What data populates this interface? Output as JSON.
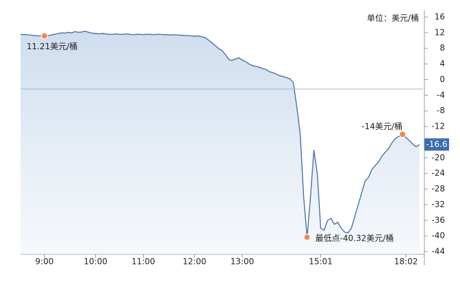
{
  "chart_data": {
    "type": "line",
    "unit_label": "单位：美元/桶",
    "x": [
      0,
      1,
      2,
      3,
      4,
      5,
      6,
      7,
      8,
      9,
      10,
      11,
      12,
      13,
      14,
      15,
      16,
      17,
      18,
      19,
      20,
      21,
      22,
      23,
      24,
      25,
      26,
      27,
      28,
      29,
      30,
      31,
      32,
      33,
      34,
      35,
      36,
      37,
      38,
      39,
      40,
      41,
      42,
      43,
      44,
      45,
      46,
      47,
      48,
      49,
      50,
      51,
      52,
      53,
      54,
      55,
      56,
      57,
      58,
      59,
      60,
      61,
      62,
      63,
      64,
      65,
      66,
      67,
      68,
      69,
      70,
      71,
      72,
      73,
      74,
      75,
      76,
      77,
      78,
      79,
      80,
      81,
      82,
      83,
      84,
      85,
      86,
      87,
      88,
      89,
      90,
      91,
      92,
      93,
      94,
      95,
      96,
      97,
      98,
      99,
      100,
      101,
      102,
      103,
      104,
      105,
      106,
      107,
      108,
      109,
      110,
      111,
      112,
      113,
      114,
      115,
      116,
      117
    ],
    "series": [
      {
        "color": "#4a6fa5",
        "values": [
          11.6,
          11.5,
          11.5,
          11.4,
          11.3,
          11.2,
          11.2,
          11.21,
          11.3,
          11.4,
          11.6,
          11.8,
          12.0,
          11.9,
          12.1,
          12.0,
          12.3,
          12.1,
          12.2,
          12.4,
          12.1,
          11.9,
          11.8,
          11.7,
          11.8,
          11.7,
          11.6,
          11.6,
          11.7,
          11.6,
          11.6,
          11.7,
          11.6,
          11.5,
          11.6,
          11.6,
          11.5,
          11.6,
          11.6,
          11.5,
          11.6,
          11.6,
          11.5,
          11.5,
          11.4,
          11.5,
          11.4,
          11.4,
          11.3,
          11.3,
          11.2,
          11.1,
          11.2,
          11.0,
          10.8,
          10.2,
          9.5,
          8.8,
          8.0,
          7.5,
          6.5,
          5.2,
          4.9,
          5.3,
          5.6,
          5.0,
          4.6,
          4.0,
          3.6,
          3.4,
          3.2,
          2.8,
          2.6,
          2.0,
          1.8,
          1.4,
          1.0,
          0.8,
          0.5,
          0.2,
          -0.8,
          -7,
          -14,
          -30,
          -40.32,
          -30,
          -18,
          -24,
          -38,
          -38.5,
          -36,
          -35.5,
          -37,
          -36.5,
          -38,
          -39,
          -39.2,
          -38,
          -35,
          -32,
          -29,
          -26,
          -25,
          -23,
          -22,
          -21,
          -19.5,
          -18.5,
          -17.5,
          -16,
          -15,
          -14.5,
          -14,
          -14.8,
          -15.6,
          -16.5,
          -17.2,
          -16.6
        ]
      }
    ],
    "xlim": [
      0,
      118
    ],
    "xticks": [
      {
        "value": 7,
        "label": "9:00"
      },
      {
        "value": 22,
        "label": "10:00"
      },
      {
        "value": 36,
        "label": "11:00"
      },
      {
        "value": 51,
        "label": "12:00"
      },
      {
        "value": 65,
        "label": "13:00"
      },
      {
        "value": 88,
        "label": "15:01"
      },
      {
        "value": 113,
        "label": "18:02"
      }
    ],
    "ylim": [
      -44,
      16
    ],
    "yticks": [
      16,
      12,
      8,
      4,
      0,
      -4,
      -8,
      -12,
      -16,
      -20,
      -24,
      -28,
      -32,
      -36,
      -40,
      -44
    ],
    "reference_line": -2.4,
    "current_value": -16.6,
    "annotations": [
      {
        "x": 7,
        "y": 11.21,
        "label": "11.21美元/桶"
      },
      {
        "x": 84,
        "y": -40.32,
        "label": "最低点-40.32美元/桶"
      },
      {
        "x": 112,
        "y": -14,
        "label": "-14美元/桶"
      }
    ]
  }
}
